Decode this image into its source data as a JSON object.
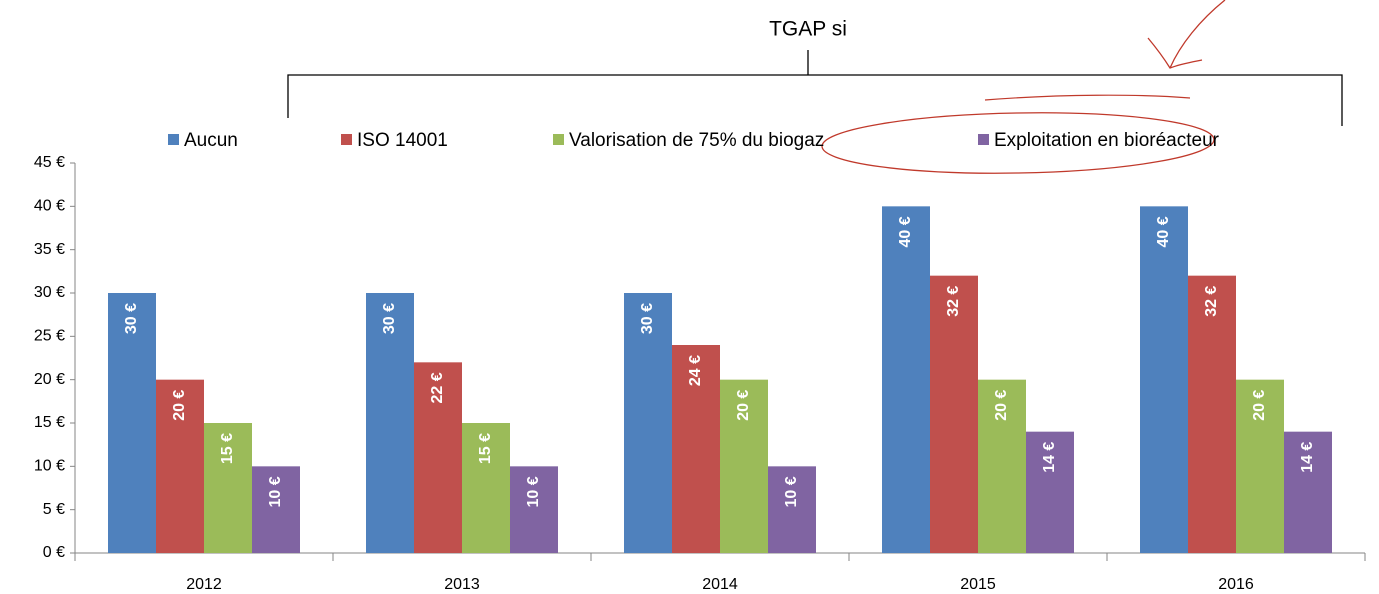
{
  "chart_data": {
    "type": "bar",
    "title": "TGAP si",
    "categories": [
      "2012",
      "2013",
      "2014",
      "2015",
      "2016"
    ],
    "series": [
      {
        "name": "Aucun",
        "color": "#4f81bd",
        "values": [
          30,
          30,
          30,
          40,
          40
        ],
        "value_labels": [
          "30 €",
          "30 €",
          "30 €",
          "40 €",
          "40 €"
        ]
      },
      {
        "name": "ISO 14001",
        "color": "#c0504d",
        "values": [
          20,
          22,
          24,
          32,
          32
        ],
        "value_labels": [
          "20 €",
          "22 €",
          "24 €",
          "32 €",
          "32 €"
        ]
      },
      {
        "name": "Valorisation de 75% du biogaz",
        "color": "#9bbb59",
        "values": [
          15,
          15,
          20,
          20,
          20
        ],
        "value_labels": [
          "15 €",
          "15 €",
          "20 €",
          "20 €",
          "20 €"
        ]
      },
      {
        "name": "Exploitation en bioréacteur",
        "color": "#8064a2",
        "values": [
          10,
          10,
          10,
          14,
          14
        ],
        "value_labels": [
          "10 €",
          "10 €",
          "10 €",
          "14 €",
          "14 €"
        ]
      }
    ],
    "ylim": [
      0,
      45
    ],
    "yticks": [
      {
        "value": 0,
        "label": "0 €"
      },
      {
        "value": 5,
        "label": "5 €"
      },
      {
        "value": 10,
        "label": "10 €"
      },
      {
        "value": 15,
        "label": "15 €"
      },
      {
        "value": 20,
        "label": "20 €"
      },
      {
        "value": 25,
        "label": "25 €"
      },
      {
        "value": 30,
        "label": "30 €"
      },
      {
        "value": 35,
        "label": "35 €"
      },
      {
        "value": 40,
        "label": "40 €"
      },
      {
        "value": 45,
        "label": "45 €"
      }
    ],
    "legend": "top"
  }
}
